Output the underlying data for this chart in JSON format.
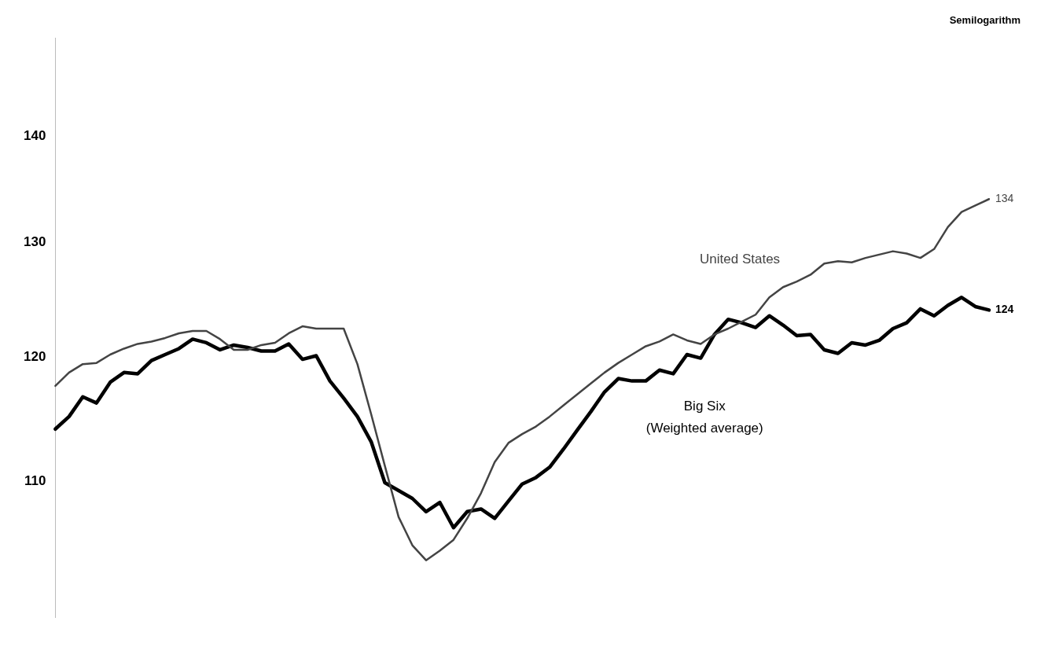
{
  "chart_data": {
    "type": "line",
    "annotations": [
      "Semilogarithm"
    ],
    "categories": [
      null,
      null,
      null,
      null,
      null,
      null,
      null,
      null,
      null,
      null,
      null,
      null,
      null,
      null,
      null,
      null,
      null,
      null,
      null,
      null,
      null,
      null,
      null,
      null,
      null,
      null,
      null,
      null,
      null,
      null,
      null,
      null,
      null,
      null,
      null,
      null,
      null,
      null,
      null,
      null,
      null,
      null,
      null,
      null,
      null,
      null,
      null,
      null,
      null,
      null,
      null,
      null,
      null,
      null,
      null,
      null,
      null,
      null,
      null,
      null,
      null,
      null,
      null,
      null,
      null,
      null,
      null,
      null,
      null
    ],
    "series": [
      {
        "name": "United States",
        "color": "#444444",
        "values": [
          117.6,
          118.7,
          119.4,
          119.5,
          120.2,
          120.7,
          121.1,
          121.3,
          121.6,
          122.0,
          122.2,
          122.2,
          121.5,
          120.6,
          120.6,
          121.0,
          121.2,
          122.0,
          122.6,
          122.4,
          122.4,
          122.4,
          119.4,
          115.3,
          111.2,
          107.3,
          105.2,
          104.1,
          104.8,
          105.6,
          107.2,
          109.1,
          111.5,
          113.0,
          113.7,
          114.3,
          115.1,
          116.0,
          116.9,
          117.8,
          118.7,
          119.5,
          120.2,
          120.9,
          121.3,
          121.9,
          121.4,
          121.1,
          121.9,
          122.4,
          123.0,
          123.6,
          125.1,
          126.0,
          126.5,
          127.1,
          128.1,
          128.3,
          128.2,
          128.6,
          128.9,
          129.2,
          129.0,
          128.6,
          129.4,
          131.4,
          132.8,
          133.4,
          134
        ],
        "value_labels": [
          null,
          null,
          null,
          null,
          null,
          null,
          null,
          null,
          null,
          null,
          null,
          null,
          null,
          null,
          null,
          null,
          null,
          null,
          null,
          null,
          null,
          null,
          null,
          null,
          null,
          null,
          null,
          null,
          null,
          null,
          null,
          null,
          null,
          null,
          null,
          null,
          null,
          null,
          null,
          null,
          null,
          null,
          null,
          null,
          null,
          null,
          null,
          null,
          null,
          null,
          null,
          null,
          null,
          null,
          null,
          null,
          null,
          null,
          null,
          null,
          null,
          null,
          null,
          null,
          null,
          null,
          null,
          null,
          "134"
        ]
      },
      {
        "name": "Big Six\n(Weighted average)",
        "color": "#000000",
        "values": [
          114.1,
          115.1,
          116.7,
          116.2,
          117.9,
          118.7,
          118.6,
          119.7,
          120.2,
          120.7,
          121.5,
          121.2,
          120.6,
          121.0,
          120.8,
          120.5,
          120.5,
          121.1,
          119.8,
          120.1,
          118.0,
          116.6,
          115.1,
          113.1,
          109.9,
          109.3,
          108.7,
          107.7,
          108.4,
          106.5,
          107.7,
          107.9,
          107.2,
          108.5,
          109.8,
          110.3,
          111.1,
          112.5,
          114.0,
          115.5,
          117.1,
          118.2,
          118.0,
          118.0,
          118.9,
          118.6,
          120.2,
          119.9,
          121.9,
          123.2,
          122.9,
          122.5,
          123.5,
          122.7,
          121.8,
          121.9,
          120.6,
          120.3,
          121.2,
          121.0,
          121.4,
          122.4,
          122.9,
          124.1,
          123.5,
          124.4,
          125.1,
          124.3,
          124
        ],
        "value_labels": [
          null,
          null,
          null,
          null,
          null,
          null,
          null,
          null,
          null,
          null,
          null,
          null,
          null,
          null,
          null,
          null,
          null,
          null,
          null,
          null,
          null,
          null,
          null,
          null,
          null,
          null,
          null,
          null,
          null,
          null,
          null,
          null,
          null,
          null,
          null,
          null,
          null,
          null,
          null,
          null,
          null,
          null,
          null,
          null,
          null,
          null,
          null,
          null,
          null,
          null,
          null,
          null,
          null,
          null,
          null,
          null,
          null,
          null,
          null,
          null,
          null,
          null,
          null,
          null,
          null,
          null,
          null,
          null,
          "124"
        ]
      }
    ],
    "ylim": [
      100,
      150
    ],
    "yticks": [
      110,
      120,
      130,
      140
    ],
    "log": "y",
    "grid": false,
    "legend": false,
    "tick_labels": "y",
    "marker": "none",
    "line_style": "solid"
  }
}
